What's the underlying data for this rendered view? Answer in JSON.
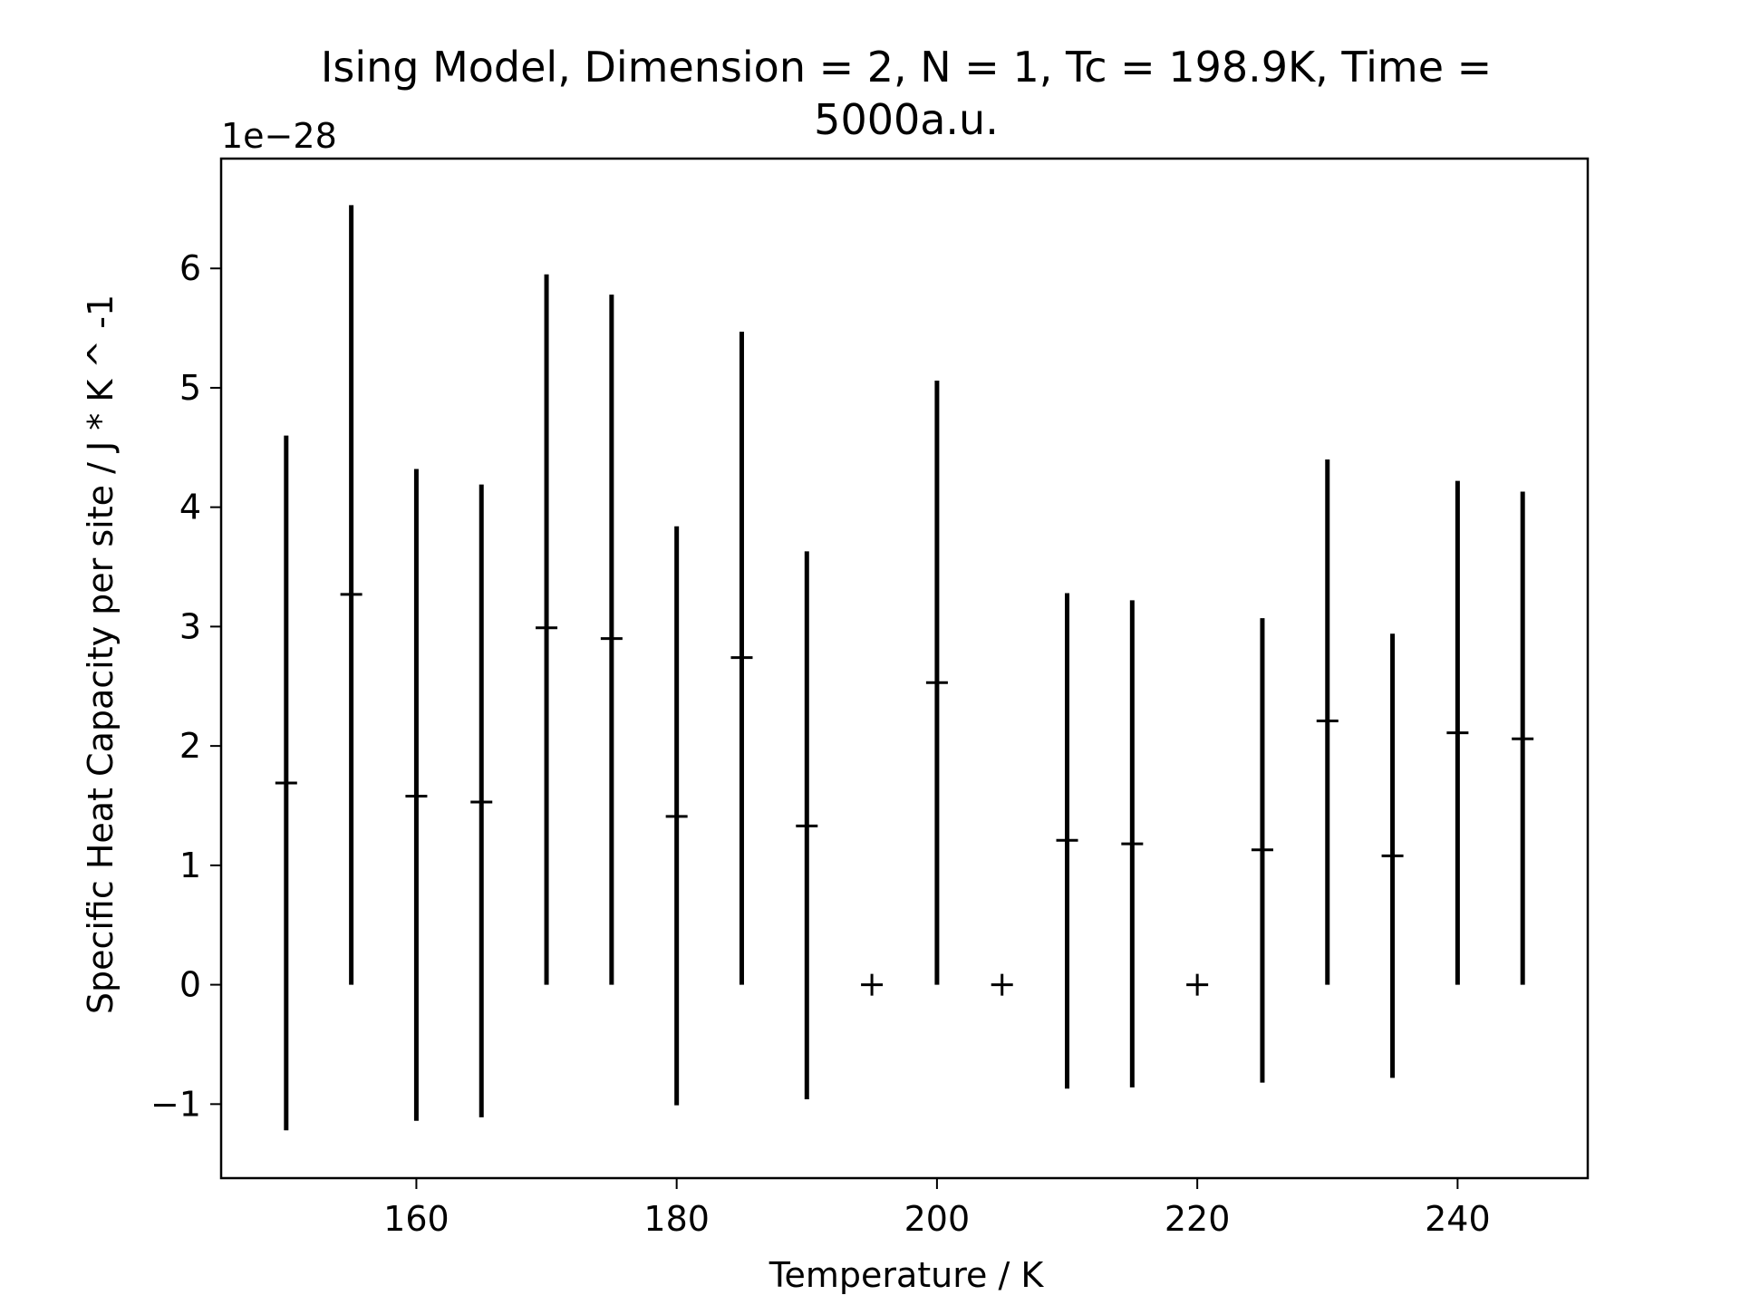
{
  "chart_data": {
    "type": "scatter",
    "title_lines": [
      "Ising Model, Dimension = 2, N = 1, Tc = 198.9K, Time =",
      "5000a.u."
    ],
    "xlabel": "Temperature / K",
    "ylabel": "Specific Heat Capacity per site / J * K ^ -1",
    "y_offset_label": "1e−28",
    "xlim": [
      145,
      250
    ],
    "ylim": [
      -1.62,
      6.92
    ],
    "xticks": [
      160,
      180,
      200,
      220,
      240
    ],
    "yticks": [
      -1,
      0,
      1,
      2,
      3,
      4,
      5,
      6
    ],
    "xtick_labels": [
      "160",
      "180",
      "200",
      "220",
      "240"
    ],
    "ytick_labels": [
      "−1",
      "0",
      "1",
      "2",
      "3",
      "4",
      "5",
      "6"
    ],
    "grid": false,
    "marker": "+",
    "color": "#000000",
    "series": [
      {
        "x": [
          150,
          155,
          160,
          165,
          170,
          175,
          180,
          185,
          190,
          195,
          200,
          205,
          210,
          215,
          220,
          225,
          230,
          235,
          240,
          245
        ],
        "y": [
          1.69,
          3.27,
          1.58,
          1.53,
          2.99,
          2.9,
          1.41,
          2.74,
          1.33,
          0,
          2.53,
          0,
          1.21,
          1.18,
          0,
          1.13,
          2.21,
          1.08,
          2.11,
          2.06
        ],
        "yerr_low": [
          -1.22,
          0,
          -1.14,
          -1.11,
          0,
          0,
          -1.01,
          0,
          -0.96,
          0,
          0,
          0,
          -0.87,
          -0.86,
          0,
          -0.82,
          0,
          -0.78,
          0,
          0
        ],
        "yerr_high": [
          4.6,
          6.53,
          4.32,
          4.19,
          5.95,
          5.78,
          3.84,
          5.47,
          3.63,
          0,
          5.06,
          0,
          3.28,
          3.22,
          0,
          3.07,
          4.4,
          2.94,
          4.22,
          4.13
        ]
      }
    ]
  }
}
